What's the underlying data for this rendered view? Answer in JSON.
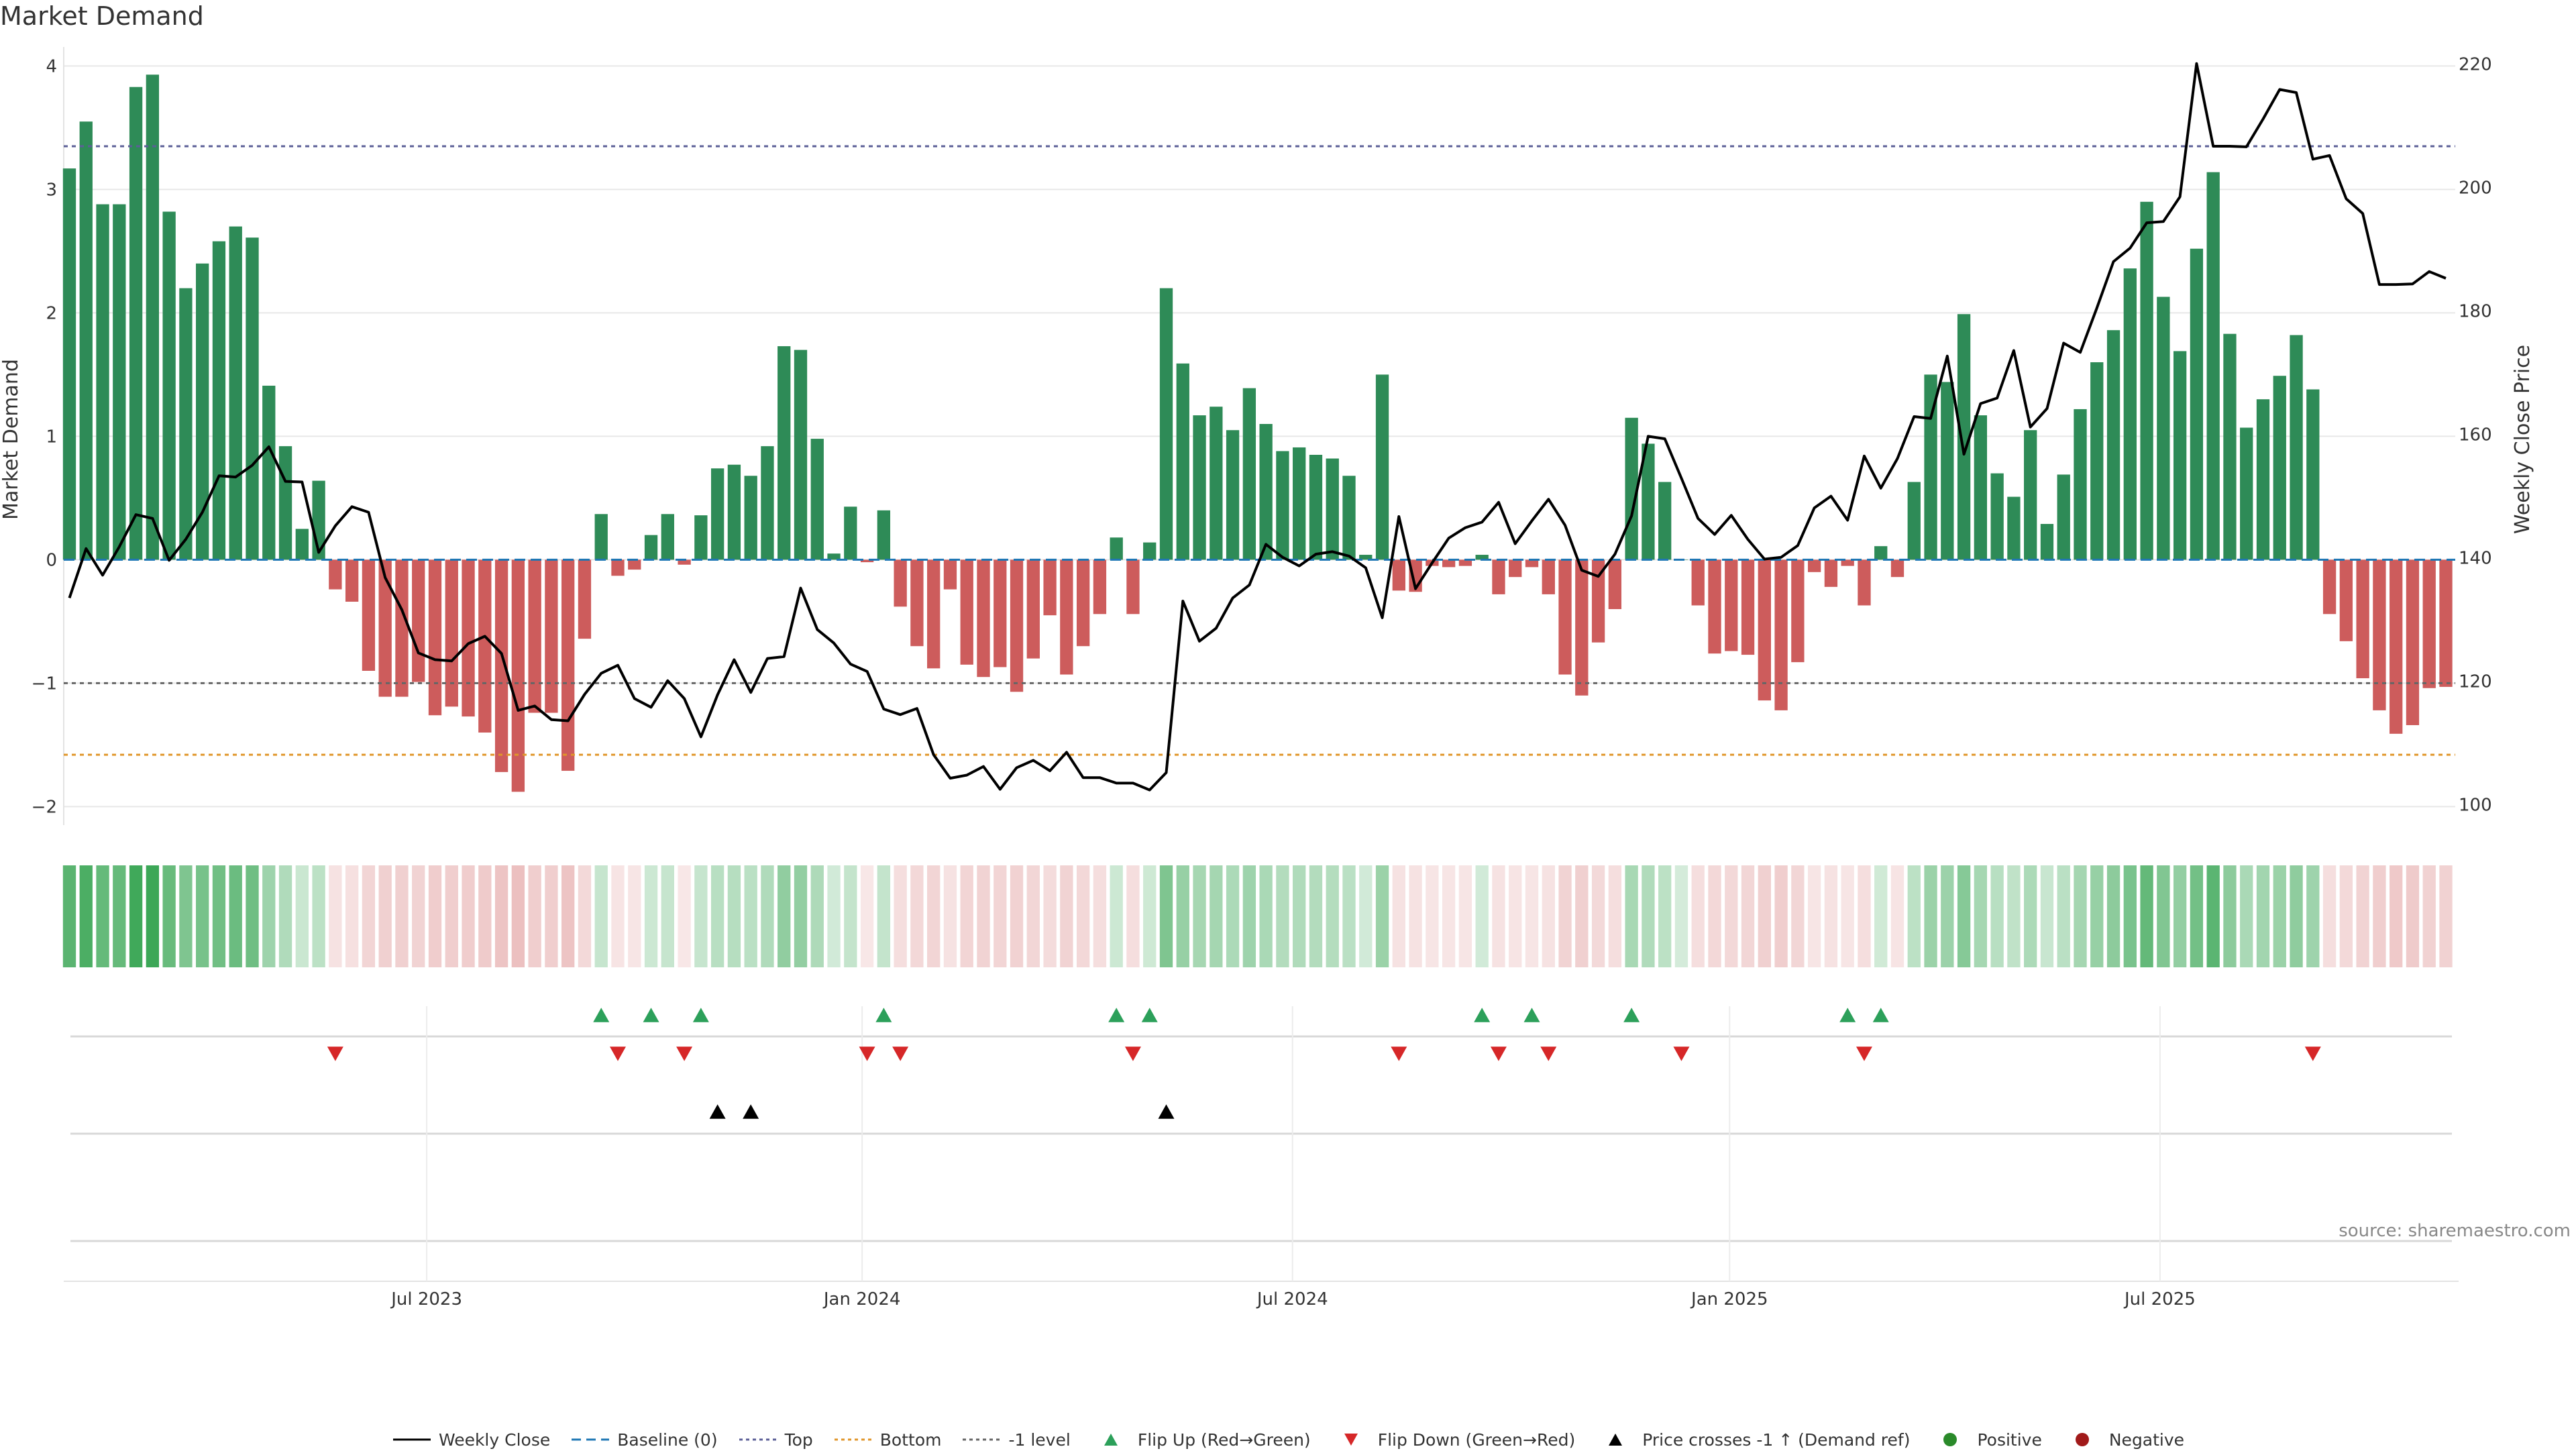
{
  "page": {
    "title": "Market Demand",
    "source": "source: sharemaestro.com"
  },
  "colors": {
    "positive_bar": "#2e8b57",
    "negative_bar": "#cd5c5c",
    "price_line": "#000000",
    "baseline": "#1f77b4",
    "top_line": "#5b5f97",
    "bottom_line": "#e0962a",
    "minus1_line": "#666666",
    "flip_up": "#2ca05a",
    "flip_down": "#d62728",
    "price_cross": "#000000",
    "positive_dot": "#2a8a2a",
    "negative_dot": "#a11a1a",
    "grid": "#e8e8e8"
  },
  "legend": [
    {
      "key": "weekly_close",
      "label": "Weekly Close"
    },
    {
      "key": "baseline",
      "label": "Baseline (0)"
    },
    {
      "key": "top",
      "label": "Top"
    },
    {
      "key": "bottom",
      "label": "Bottom"
    },
    {
      "key": "minus1",
      "label": "-1 level"
    },
    {
      "key": "flip_up",
      "label": "Flip Up (Red→Green)"
    },
    {
      "key": "flip_down",
      "label": "Flip Down (Green→Red)"
    },
    {
      "key": "price_cross",
      "label": "Price crosses -1 ↑ (Demand ref)"
    },
    {
      "key": "positive",
      "label": "Positive"
    },
    {
      "key": "negative",
      "label": "Negative"
    }
  ],
  "chart_data": {
    "type": "bar",
    "title": "Market Demand",
    "ylabel": "Market Demand",
    "y2label": "Weekly Close Price",
    "ylim": [
      -2.15,
      4.1
    ],
    "y2lim": [
      96.7,
      221.7
    ],
    "yticks": [
      -2,
      -1,
      0,
      1,
      2,
      3,
      4
    ],
    "yticklabels": [
      "−2",
      "−1",
      "0",
      "1",
      "2",
      "3",
      "4"
    ],
    "y2ticks": [
      100,
      120,
      140,
      160,
      180,
      200,
      220
    ],
    "xticks": [
      {
        "label": "Jul 2023",
        "week": 21.5
      },
      {
        "label": "Jan 2024",
        "week": 47.7
      },
      {
        "label": "Jul 2024",
        "week": 73.6
      },
      {
        "label": "Jan 2025",
        "week": 99.9
      },
      {
        "label": "Jul 2025",
        "week": 125.8
      }
    ],
    "reference_lines": {
      "baseline": 0,
      "top": 3.35,
      "bottom": -1.58,
      "minus1": -1.0
    },
    "demand": [
      3.17,
      3.55,
      2.88,
      2.88,
      3.83,
      3.93,
      2.82,
      2.2,
      2.4,
      2.58,
      2.7,
      2.61,
      1.41,
      0.92,
      0.25,
      0.64,
      -0.24,
      -0.34,
      -0.9,
      -1.11,
      -1.11,
      -0.99,
      -1.26,
      -1.19,
      -1.27,
      -1.4,
      -1.72,
      -1.88,
      -1.24,
      -1.24,
      -1.71,
      -0.64,
      0.37,
      -0.13,
      -0.08,
      0.2,
      0.37,
      -0.04,
      0.36,
      0.74,
      0.77,
      0.68,
      0.92,
      1.73,
      1.7,
      0.98,
      0.05,
      0.43,
      -0.02,
      0.4,
      -0.38,
      -0.7,
      -0.88,
      -0.24,
      -0.85,
      -0.95,
      -0.87,
      -1.07,
      -0.8,
      -0.45,
      -0.93,
      -0.7,
      -0.44,
      0.18,
      -0.44,
      0.14,
      2.2,
      1.59,
      1.17,
      1.24,
      1.05,
      1.39,
      1.1,
      0.88,
      0.91,
      0.85,
      0.82,
      0.68,
      0.04,
      1.5,
      -0.25,
      -0.26,
      -0.05,
      -0.06,
      -0.05,
      0.04,
      -0.28,
      -0.14,
      -0.06,
      -0.28,
      -0.93,
      -1.1,
      -0.67,
      -0.4,
      1.15,
      0.94,
      0.63,
      0.0,
      -0.37,
      -0.76,
      -0.74,
      -0.77,
      -1.14,
      -1.22,
      -0.83,
      -0.1,
      -0.22,
      -0.05,
      -0.37,
      0.11,
      -0.14,
      0.63,
      1.5,
      1.44,
      1.99,
      1.17,
      0.7,
      0.51,
      1.05,
      0.29,
      0.69,
      1.22,
      1.6,
      1.86,
      2.36,
      2.9,
      2.13,
      1.69,
      2.52,
      3.14,
      1.83,
      1.07,
      1.3,
      1.49,
      1.82,
      1.38,
      -0.44,
      -0.66,
      -0.96,
      -1.22,
      -1.41,
      -1.34,
      -1.04,
      -1.03
    ],
    "weekly_close": [
      133.5,
      141.5,
      137.2,
      141.8,
      147.0,
      146.4,
      139.6,
      143.0,
      147.4,
      153.3,
      153.1,
      155.0,
      158.0,
      152.4,
      152.3,
      140.9,
      145.2,
      148.3,
      147.4,
      136.8,
      131.6,
      124.6,
      123.5,
      123.3,
      126.1,
      127.3,
      124.5,
      115.3,
      116.0,
      113.8,
      113.6,
      117.9,
      121.3,
      122.6,
      117.2,
      115.8,
      120.1,
      117.2,
      111.0,
      117.8,
      123.5,
      118.2,
      123.7,
      124.0,
      135.1,
      128.4,
      126.2,
      122.8,
      121.6,
      115.5,
      114.6,
      115.6,
      108.1,
      104.3,
      104.8,
      106.2,
      102.5,
      106.0,
      107.2,
      105.5,
      108.5,
      104.4,
      104.4,
      103.5,
      103.5,
      102.4,
      105.2,
      133.0,
      126.5,
      128.6,
      133.5,
      135.6,
      142.2,
      140.1,
      138.7,
      140.6,
      141.0,
      140.3,
      138.4,
      130.3,
      146.7,
      135.0,
      139.2,
      143.2,
      144.9,
      145.8,
      149.0,
      142.3,
      146.0,
      149.5,
      145.3,
      138.0,
      137.0,
      140.6,
      146.8,
      159.7,
      159.3,
      152.9,
      146.4,
      143.8,
      146.9,
      143.0,
      139.8,
      140.1,
      142.0,
      148.1,
      150.0,
      146.1,
      156.5,
      151.3,
      156.1,
      162.9,
      162.6,
      172.7,
      156.8,
      165.0,
      165.9,
      173.6,
      161.2,
      164.2,
      174.8,
      173.3,
      180.5,
      188.0,
      190.2,
      194.3,
      194.5,
      198.5,
      220.1,
      206.7,
      206.7,
      206.6,
      211.1,
      215.9,
      215.4,
      204.6,
      205.2,
      198.2,
      195.8,
      184.3,
      184.3,
      184.4,
      186.4,
      185.3
    ],
    "flip_up_weeks": [
      32,
      35,
      38,
      49,
      63,
      65,
      85,
      88,
      94,
      107,
      109
    ],
    "flip_down_weeks": [
      16,
      33,
      37,
      48,
      50,
      64,
      80,
      86,
      89,
      97,
      108,
      135
    ],
    "price_cross_weeks": [
      39,
      41,
      66
    ],
    "price_bands_opacity_note": "heat strip under main chart mirrors demand sign and magnitude"
  }
}
